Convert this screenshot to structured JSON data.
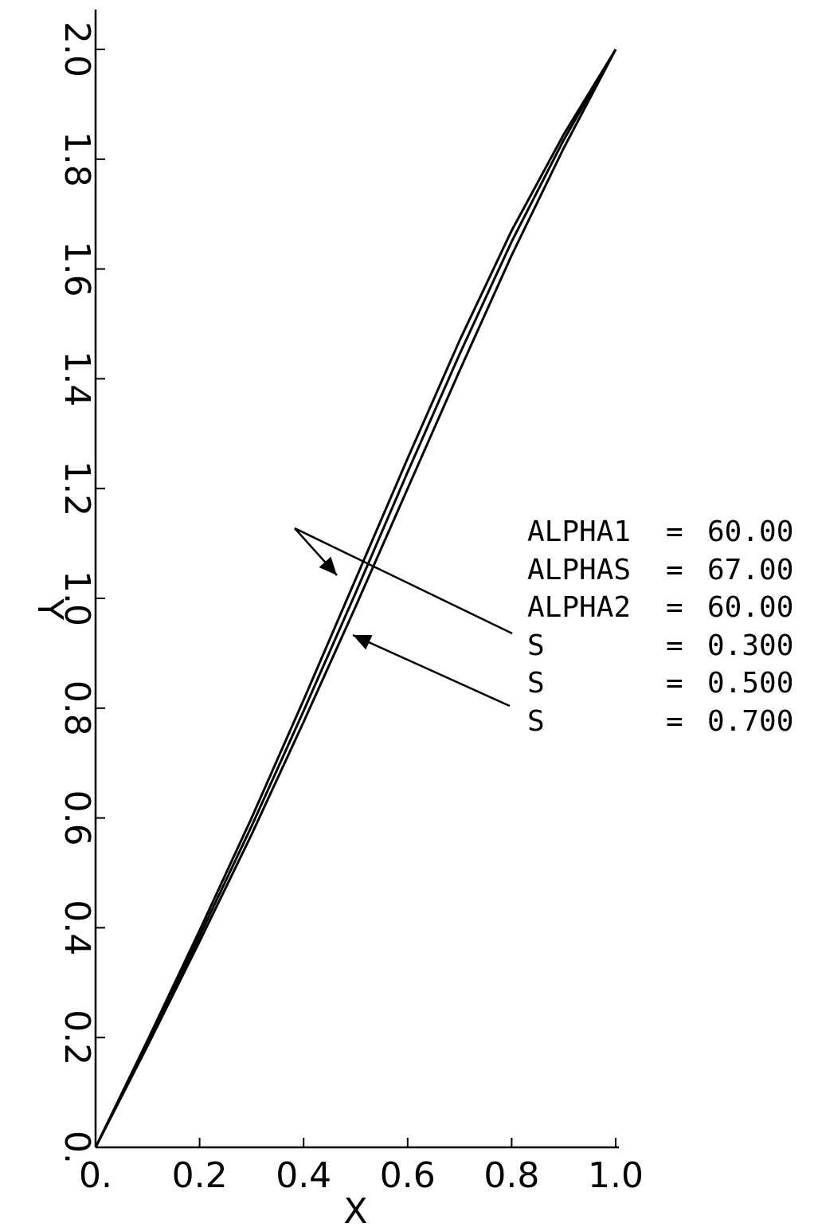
{
  "chart_data": {
    "type": "line",
    "xlabel": "X",
    "ylabel": "Y",
    "xlim": [
      0,
      1
    ],
    "ylim": [
      0,
      2
    ],
    "x_ticks": [
      "0.",
      "0.2",
      "0.4",
      "0.6",
      "0.8",
      "1.0"
    ],
    "y_ticks": [
      "0.",
      "0.2",
      "0.4",
      "0.6",
      "0.8",
      "1.0",
      "1.2",
      "1.4",
      "1.6",
      "1.8",
      "2.0"
    ],
    "grid": false,
    "series": [
      {
        "x": [
          0,
          0.1,
          0.2,
          0.3,
          0.4,
          0.5,
          0.6,
          0.7,
          0.8,
          0.9,
          1.0
        ],
        "y": [
          0,
          0.195,
          0.395,
          0.6,
          0.815,
          1.035,
          1.255,
          1.47,
          1.67,
          1.845,
          2.0
        ]
      },
      {
        "x": [
          0,
          0.1,
          0.2,
          0.3,
          0.4,
          0.5,
          0.6,
          0.7,
          0.8,
          0.9,
          1.0
        ],
        "y": [
          0,
          0.19,
          0.385,
          0.585,
          0.795,
          1.01,
          1.23,
          1.445,
          1.65,
          1.835,
          2.0
        ]
      },
      {
        "x": [
          0,
          0.1,
          0.2,
          0.3,
          0.4,
          0.5,
          0.6,
          0.7,
          0.8,
          0.9,
          1.0
        ],
        "y": [
          0,
          0.185,
          0.375,
          0.57,
          0.775,
          0.985,
          1.2,
          1.415,
          1.625,
          1.82,
          2.0
        ]
      }
    ],
    "annotations": [
      {
        "label": "ALPHA1",
        "eq": "=",
        "value": "60.00"
      },
      {
        "label": "ALPHAS",
        "eq": "=",
        "value": "67.00"
      },
      {
        "label": "ALPHA2",
        "eq": "=",
        "value": "60.00"
      },
      {
        "label": "S",
        "eq": "=",
        "value": "0.300"
      },
      {
        "label": "S",
        "eq": "=",
        "value": "0.500"
      },
      {
        "label": "S",
        "eq": "=",
        "value": "0.700"
      }
    ]
  }
}
